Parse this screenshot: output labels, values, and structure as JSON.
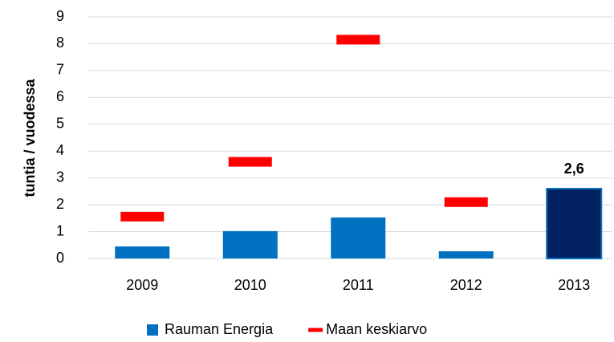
{
  "chart_data": {
    "type": "bar",
    "y_label": "tuntia / vuodessa",
    "categories": [
      "2009",
      "2010",
      "2011",
      "2012",
      "2013"
    ],
    "series": [
      {
        "name": "Rauman Energia",
        "type": "bar",
        "color": "#0070c0",
        "colors": [
          "#0070c0",
          "#0070c0",
          "#0070c0",
          "#0070c0",
          "#002060"
        ],
        "values": [
          0.45,
          1.02,
          1.53,
          0.27,
          2.6
        ],
        "value_labels": [
          null,
          null,
          null,
          null,
          "2,6"
        ]
      },
      {
        "name": "Maan keskiarvo",
        "type": "marker",
        "color": "#ff0000",
        "values": [
          1.56,
          3.6,
          8.15,
          2.1,
          null
        ]
      }
    ],
    "ylim": [
      0,
      9
    ],
    "yticks": [
      0,
      1,
      2,
      3,
      4,
      5,
      6,
      7,
      8,
      9
    ],
    "grid": true,
    "legend": "bottom"
  }
}
